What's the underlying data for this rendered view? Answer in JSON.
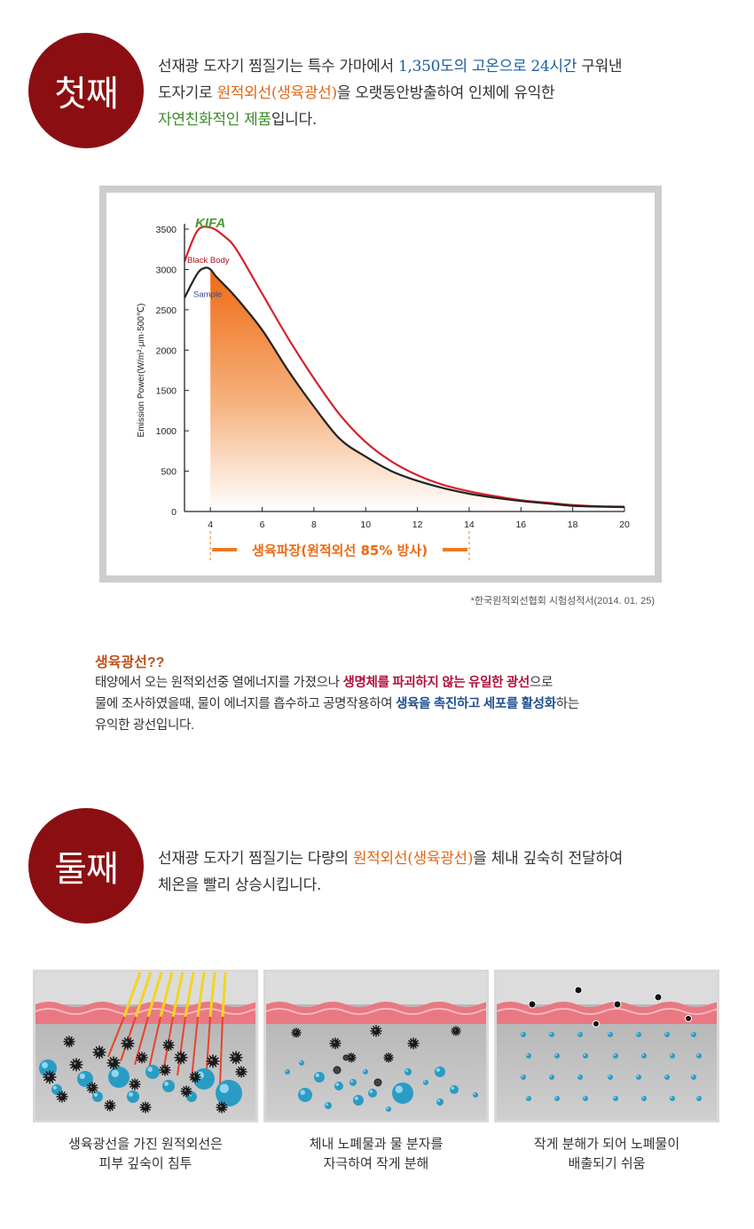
{
  "section1": {
    "badge": "첫째",
    "line1_a": "선재광 도자기 찜질기는 특수 가마에서 ",
    "line1_b": "1,350도의 고온으로 24시간",
    "line1_c": " 구워낸",
    "line2_a": "도자기로 ",
    "line2_b": "원적외선(생육광선)",
    "line2_c": "을 오랫동안방출하여 인체에 유익한",
    "line3_a": "자연친화적인 제품",
    "line3_b": "입니다."
  },
  "chart_data": {
    "type": "line",
    "brand": "KIFA",
    "ylabel": "Emission Power(W/m²·μm·500℃)",
    "x_ticks": [
      4,
      6,
      8,
      10,
      12,
      14,
      16,
      18,
      20
    ],
    "y_ticks": [
      0,
      500,
      1000,
      1500,
      2000,
      2500,
      3000,
      3500
    ],
    "xlim": [
      3,
      20
    ],
    "ylim": [
      0,
      3500
    ],
    "range_label": "생육파장(원적외선 85% 방사)",
    "range": [
      4,
      14
    ],
    "series": [
      {
        "name": "Black Body",
        "color": "#d2232a",
        "x": [
          3,
          3.5,
          4,
          4.5,
          5,
          6,
          7,
          8,
          9,
          10,
          11,
          12,
          13,
          14,
          15,
          16,
          17,
          18,
          19,
          20
        ],
        "values": [
          3100,
          3480,
          3520,
          3420,
          3250,
          2700,
          2150,
          1650,
          1200,
          860,
          620,
          450,
          330,
          250,
          190,
          140,
          110,
          80,
          65,
          60
        ]
      },
      {
        "name": "Sample",
        "color": "#222222",
        "x": [
          3,
          3.5,
          3.8,
          4,
          4.2,
          4.5,
          5,
          6,
          7,
          8,
          9,
          10,
          11,
          12,
          13,
          14,
          15,
          16,
          17,
          18,
          19,
          20
        ],
        "values": [
          2650,
          2950,
          3020,
          3000,
          2920,
          2820,
          2650,
          2250,
          1750,
          1300,
          900,
          680,
          500,
          380,
          290,
          220,
          170,
          130,
          100,
          70,
          60,
          55
        ]
      }
    ]
  },
  "footnote": "*한국원적외선협회 시험성적서(2014. 01. 25)",
  "info": {
    "title": "생육광선??",
    "p1_a": "태양에서 오는 원적외선중 열에너지를 가졌으나 ",
    "p1_b": "생명체를 파괴하지 않는 유일한 광선",
    "p1_c": "으로",
    "p2_a": "물에 조사하였을때, 물이 에너지를 흡수하고 공명작용하여 ",
    "p2_b": "생육을 촉진하고 세포를 활성화",
    "p2_c": "하는",
    "p3": "유익한 광선입니다."
  },
  "section2": {
    "badge": "둘째",
    "line1_a": "선재광 도자기 찜질기는 다량의 ",
    "line1_b": "원적외선(생육광선)",
    "line1_c": "을 체내 깊숙히 전달하여",
    "line2": "체온을 빨리 상승시킵니다."
  },
  "panels": [
    {
      "caption1": "생육광선을 가진 원적외선은",
      "caption2": "피부 깊숙이 침투"
    },
    {
      "caption1": "체내 노폐물과 물 분자를",
      "caption2": "자극하여 작게 분해"
    },
    {
      "caption1": "작게 분해가 되어 노폐물이",
      "caption2": "배출되기 쉬움"
    }
  ],
  "colors": {
    "badge": "#8b0f12",
    "highlight_orange": "#e0691a",
    "highlight_blue": "#1c5fa0",
    "highlight_green": "#3b8a2a"
  }
}
